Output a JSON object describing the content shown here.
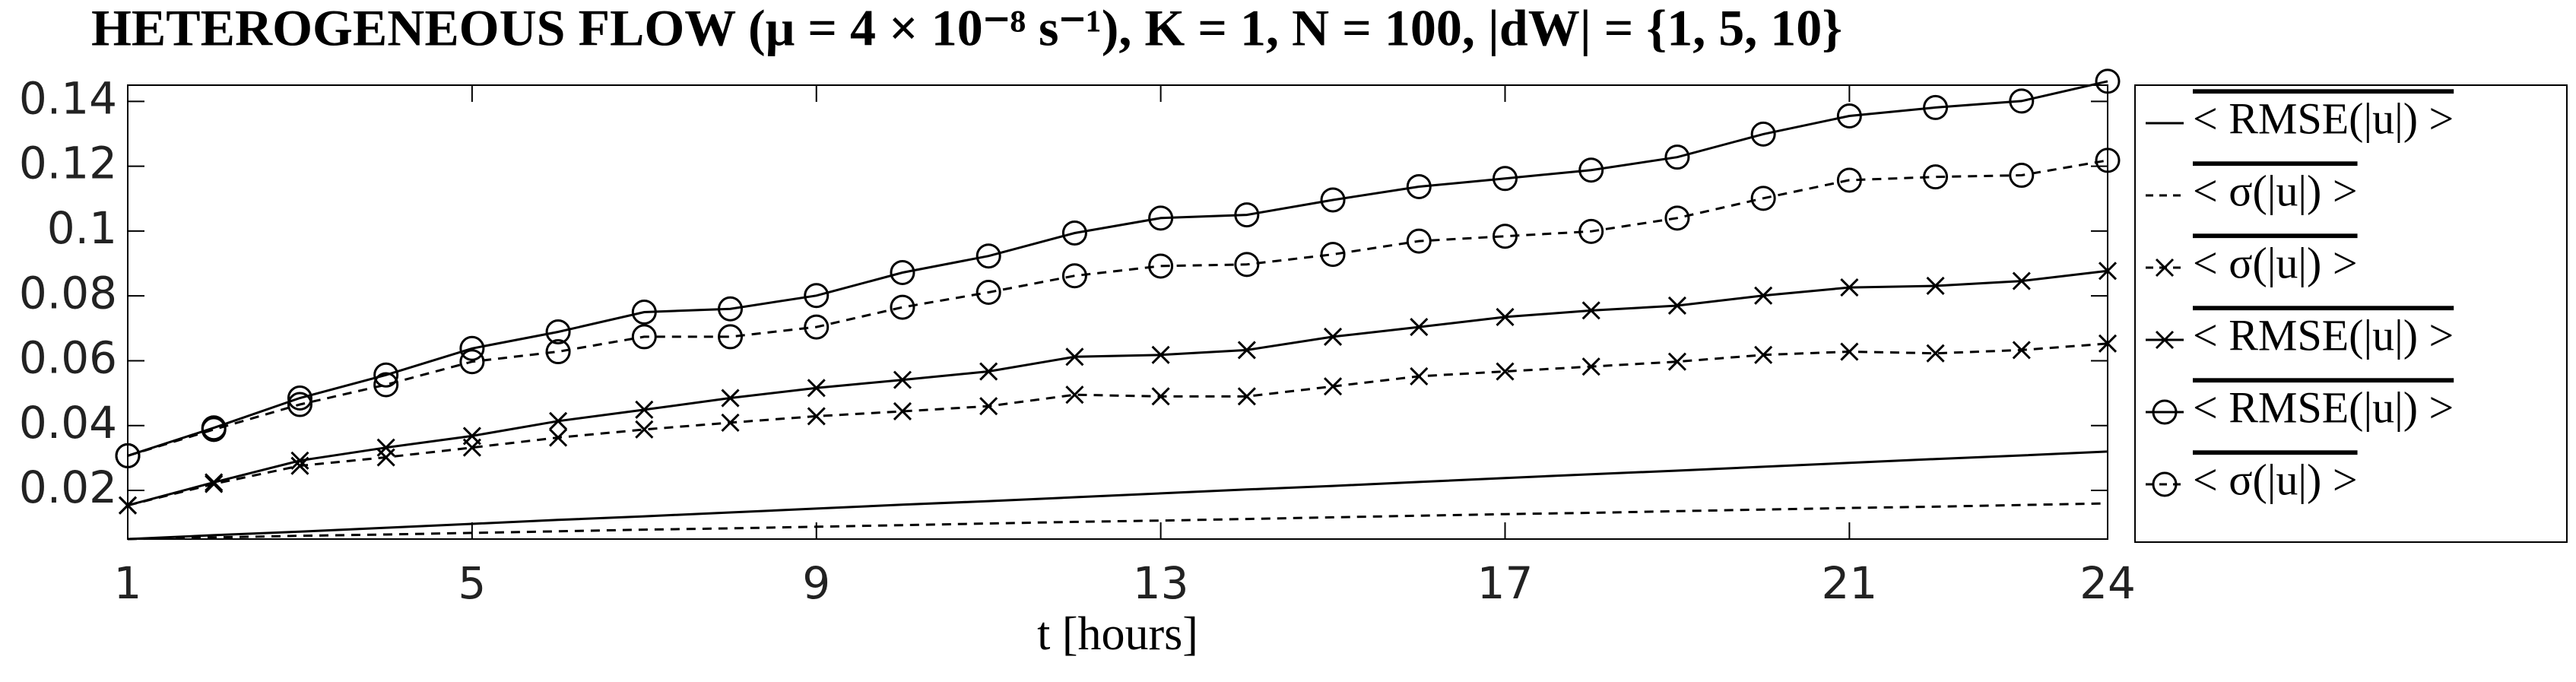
{
  "chart_data": {
    "type": "line",
    "title": "HETEROGENEOUS FLOW (μ = 4 × 10⁻⁸ s⁻¹), K = 1, N = 100, |dW| = {1, 5, 10}",
    "x_label": "t [hours]",
    "x": [
      1,
      2,
      3,
      4,
      5,
      6,
      7,
      8,
      9,
      10,
      11,
      12,
      13,
      14,
      15,
      16,
      17,
      18,
      19,
      20,
      21,
      22,
      23,
      24
    ],
    "xlim": [
      1,
      24
    ],
    "xticks": [
      1,
      5,
      9,
      13,
      17,
      21,
      24
    ],
    "ylim": [
      0.005,
      0.145
    ],
    "yticks": [
      0.02,
      0.04,
      0.06,
      0.08,
      0.1,
      0.12,
      0.14
    ],
    "grid": false,
    "legend": "outside-right",
    "series": [
      {
        "name": "< RMSE(|u|) >",
        "color": "#000000",
        "dash": false,
        "marker": "none",
        "values": [
          0.005,
          0.0062,
          0.0073,
          0.0085,
          0.0097,
          0.0109,
          0.012,
          0.0132,
          0.0144,
          0.0156,
          0.0167,
          0.0179,
          0.0191,
          0.0203,
          0.0214,
          0.0226,
          0.0238,
          0.025,
          0.0261,
          0.0273,
          0.0285,
          0.0297,
          0.0308,
          0.032
        ]
      },
      {
        "name": "< σ(|u|) >",
        "color": "#000000",
        "dash": true,
        "marker": "none",
        "values": [
          0.005,
          0.0055,
          0.006,
          0.0064,
          0.0069,
          0.0074,
          0.0079,
          0.0083,
          0.0088,
          0.0093,
          0.0098,
          0.0103,
          0.0107,
          0.0112,
          0.0117,
          0.0122,
          0.0127,
          0.0131,
          0.0136,
          0.0141,
          0.0146,
          0.015,
          0.0155,
          0.016
        ]
      },
      {
        "name": "< σ(|u|) >",
        "color": "#000000",
        "dash": true,
        "marker": "x",
        "values": [
          0.0154,
          0.022,
          0.0276,
          0.0302,
          0.0332,
          0.0363,
          0.0388,
          0.0409,
          0.0429,
          0.0444,
          0.046,
          0.0495,
          0.049,
          0.049,
          0.0521,
          0.0552,
          0.0567,
          0.0582,
          0.0597,
          0.0618,
          0.0628,
          0.0623,
          0.0633,
          0.0653
        ]
      },
      {
        "name": "< RMSE(|u|) >",
        "color": "#000000",
        "dash": false,
        "marker": "x",
        "values": [
          0.0154,
          0.0225,
          0.0292,
          0.0332,
          0.0368,
          0.0414,
          0.0449,
          0.0485,
          0.0516,
          0.0541,
          0.0567,
          0.0612,
          0.0618,
          0.0633,
          0.0674,
          0.0704,
          0.0735,
          0.0755,
          0.077,
          0.0801,
          0.0826,
          0.0831,
          0.0846,
          0.0877
        ]
      },
      {
        "name": "< RMSE(|u|) >",
        "color": "#000000",
        "dash": false,
        "marker": "o",
        "values": [
          0.0307,
          0.0393,
          0.0485,
          0.0556,
          0.0638,
          0.0689,
          0.075,
          0.076,
          0.0801,
          0.0872,
          0.0923,
          0.0994,
          0.104,
          0.105,
          0.1096,
          0.1137,
          0.1162,
          0.1188,
          0.1228,
          0.1299,
          0.1355,
          0.1381,
          0.1401,
          0.1462
        ]
      },
      {
        "name": "< σ(|u|) >",
        "color": "#000000",
        "dash": true,
        "marker": "o",
        "values": [
          0.0307,
          0.0388,
          0.0465,
          0.0526,
          0.0597,
          0.0628,
          0.0674,
          0.0674,
          0.0704,
          0.0765,
          0.0811,
          0.0862,
          0.0892,
          0.0897,
          0.0928,
          0.0969,
          0.0984,
          0.0999,
          0.104,
          0.1101,
          0.1157,
          0.1167,
          0.1172,
          0.1218
        ]
      }
    ]
  }
}
